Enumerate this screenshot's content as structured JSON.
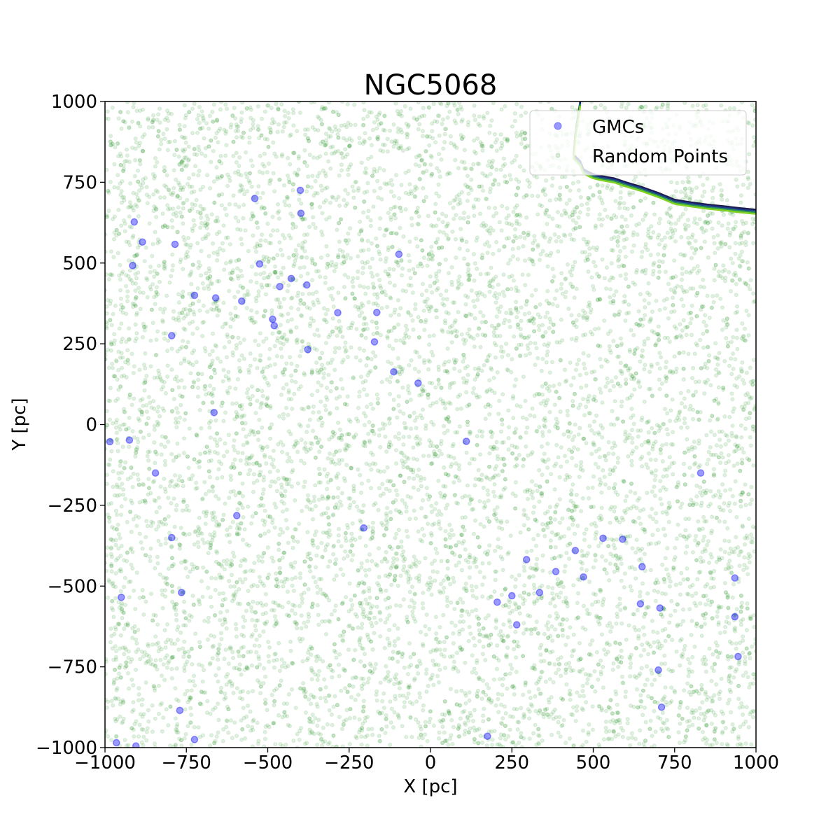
{
  "chart_data": {
    "type": "scatter",
    "title": "NGC5068",
    "xlabel": "X [pc]",
    "ylabel": "Y [pc]",
    "xlim": [
      -1000,
      1000
    ],
    "ylim": [
      -1000,
      1000
    ],
    "xticks": [
      -1000,
      -750,
      -500,
      -250,
      0,
      250,
      500,
      750,
      1000
    ],
    "yticks": [
      -1000,
      -750,
      -500,
      -250,
      0,
      250,
      500,
      750,
      1000
    ],
    "xtick_labels": [
      "−1000",
      "−750",
      "−500",
      "−250",
      "0",
      "250",
      "500",
      "750",
      "1000"
    ],
    "ytick_labels": [
      "−1000",
      "−750",
      "−500",
      "−250",
      "0",
      "250",
      "500",
      "750",
      "1000"
    ],
    "grid": false,
    "legend": {
      "position": "upper right",
      "entries": [
        "GMCs",
        "Random Points"
      ]
    },
    "series": [
      {
        "name": "GMCs",
        "color": "#0000ff",
        "alpha": 0.4,
        "points": [
          [
            -910,
            627
          ],
          [
            -885,
            565
          ],
          [
            -915,
            492
          ],
          [
            -785,
            558
          ],
          [
            -725,
            400
          ],
          [
            -660,
            392
          ],
          [
            -580,
            382
          ],
          [
            -540,
            700
          ],
          [
            -525,
            497
          ],
          [
            -400,
            725
          ],
          [
            -398,
            654
          ],
          [
            -428,
            452
          ],
          [
            -463,
            427
          ],
          [
            -485,
            326
          ],
          [
            -480,
            306
          ],
          [
            -380,
            432
          ],
          [
            -377,
            232
          ],
          [
            -285,
            346
          ],
          [
            -165,
            347
          ],
          [
            -172,
            256
          ],
          [
            -97,
            527
          ],
          [
            -113,
            163
          ],
          [
            -38,
            128
          ],
          [
            -795,
            275
          ],
          [
            -665,
            37
          ],
          [
            -985,
            -53
          ],
          [
            -925,
            -48
          ],
          [
            -845,
            -150
          ],
          [
            -595,
            -282
          ],
          [
            -795,
            -350
          ],
          [
            -765,
            -520
          ],
          [
            -950,
            -535
          ],
          [
            -770,
            -885
          ],
          [
            -725,
            -975
          ],
          [
            -965,
            -985
          ],
          [
            -905,
            -995
          ],
          [
            -205,
            -320
          ],
          [
            110,
            -52
          ],
          [
            295,
            -418
          ],
          [
            445,
            -390
          ],
          [
            385,
            -455
          ],
          [
            470,
            -472
          ],
          [
            530,
            -352
          ],
          [
            590,
            -355
          ],
          [
            650,
            -440
          ],
          [
            205,
            -550
          ],
          [
            250,
            -530
          ],
          [
            335,
            -520
          ],
          [
            265,
            -620
          ],
          [
            645,
            -555
          ],
          [
            705,
            -568
          ],
          [
            700,
            -760
          ],
          [
            710,
            -875
          ],
          [
            830,
            -150
          ],
          [
            935,
            -475
          ],
          [
            935,
            -595
          ],
          [
            945,
            -718
          ],
          [
            175,
            -965
          ]
        ]
      },
      {
        "name": "Random Points",
        "color": "#008000",
        "alpha": 0.12,
        "count": 9000
      }
    ],
    "boundary": {
      "colors": [
        "#1a1a4e",
        "#1f3a8a",
        "#2a8f5a",
        "#7fd320"
      ],
      "points": [
        [
          460,
          1000
        ],
        [
          445,
          900
        ],
        [
          440,
          835
        ],
        [
          460,
          815
        ],
        [
          470,
          790
        ],
        [
          500,
          775
        ],
        [
          520,
          770
        ],
        [
          565,
          762
        ],
        [
          600,
          750
        ],
        [
          650,
          735
        ],
        [
          700,
          717
        ],
        [
          750,
          696
        ],
        [
          800,
          688
        ],
        [
          850,
          681
        ],
        [
          900,
          676
        ],
        [
          950,
          670
        ],
        [
          1000,
          665
        ]
      ]
    }
  }
}
